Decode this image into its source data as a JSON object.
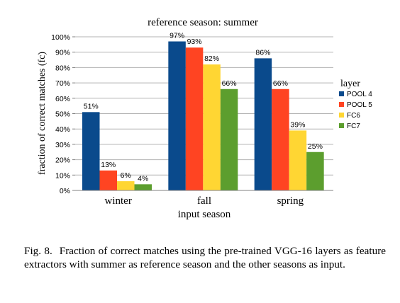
{
  "chart_data": {
    "type": "bar",
    "title": "reference season: summer",
    "xlabel": "input season",
    "ylabel": "fraction of correct matches (fc)",
    "ylim": [
      0,
      100
    ],
    "y_tick_labels": [
      "0%",
      "10%",
      "20%",
      "30%",
      "40%",
      "50%",
      "60%",
      "70%",
      "80%",
      "90%",
      "100%"
    ],
    "categories": [
      "winter",
      "fall",
      "spring"
    ],
    "grid": true,
    "legend_title": "layer",
    "legend_position": "right",
    "series": [
      {
        "name": "POOL 4",
        "color": "#0a4a8c",
        "values": [
          51,
          97,
          86
        ],
        "labels": [
          "51%",
          "97%",
          "86%"
        ]
      },
      {
        "name": "POOL 5",
        "color": "#ff4422",
        "values": [
          13,
          93,
          66
        ],
        "labels": [
          "13%",
          "93%",
          "66%"
        ]
      },
      {
        "name": "FC6",
        "color": "#ffd633",
        "values": [
          6,
          82,
          39
        ],
        "labels": [
          "6%",
          "82%",
          "39%"
        ]
      },
      {
        "name": "FC7",
        "color": "#5c9e2e",
        "values": [
          4,
          66,
          25
        ],
        "labels": [
          "4%",
          "66%",
          "25%"
        ]
      }
    ]
  },
  "caption": {
    "label": "Fig. 8.",
    "text": "Fraction of correct matches using the pre-trained VGG-16 layers as feature extractors with summer as reference season and the other seasons as input."
  }
}
